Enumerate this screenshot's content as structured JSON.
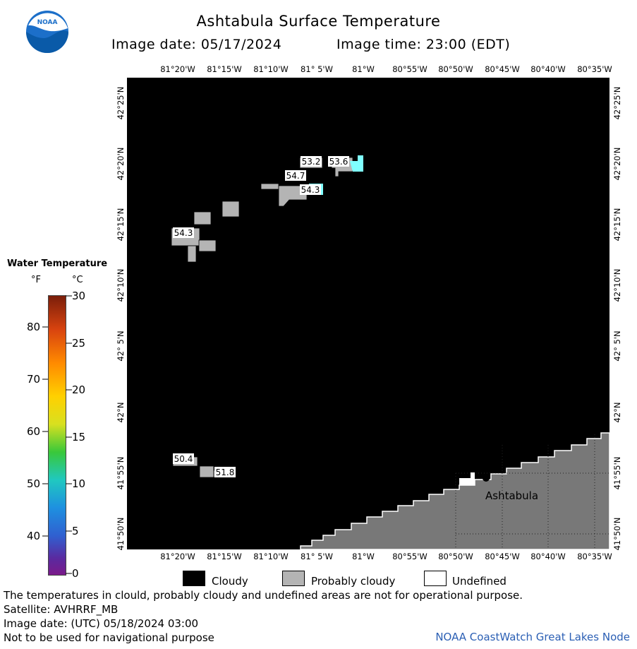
{
  "title": "Ashtabula Surface Temperature",
  "image_date_label": "Image date: 05/17/2024",
  "image_time_label": "Image time: 23:00 (EDT)",
  "logo_text": "NOAA",
  "longitude_labels": [
    "81°20'W",
    "81°15'W",
    "81°10'W",
    "81° 5'W",
    "81°W",
    "80°55'W",
    "80°50'W",
    "80°45'W",
    "80°40'W",
    "80°35'W"
  ],
  "latitude_labels": [
    "42°25'N",
    "42°20'N",
    "42°15'N",
    "42°10'N",
    "42° 5'N",
    "42°N",
    "41°55'N",
    "41°50'N"
  ],
  "map": {
    "city_label": "Ashtabula",
    "temperature_labels": [
      "53.2",
      "53.6",
      "54.7",
      "54.3",
      "54.3",
      "50.4",
      "51.8"
    ]
  },
  "colorbar": {
    "title": "Water Temperature",
    "unit_f": "°F",
    "unit_c": "°C",
    "f_ticks": [
      "80",
      "70",
      "60",
      "50",
      "40"
    ],
    "c_ticks": [
      "30",
      "25",
      "20",
      "15",
      "10",
      "5",
      "0"
    ]
  },
  "legend": {
    "cloudy": "Cloudy",
    "probably_cloudy": "Probably cloudy",
    "undefined": "Undefined",
    "colors": {
      "cloudy": "#000000",
      "probably_cloudy": "#b4b4b4",
      "undefined": "#ffffff",
      "land": "#787878",
      "warm_water": "#7fffff"
    }
  },
  "footer": {
    "note": "The temperatures in clould, probably cloudy and undefined areas are not for operational purpose.",
    "satellite": "Satellite: AVHRRF_MB",
    "utc_date": "Image date: (UTC) 05/18/2024  03:00",
    "disclaimer": "Not to be used for navigational purpose",
    "credit": "NOAA CoastWatch Great Lakes Node"
  }
}
